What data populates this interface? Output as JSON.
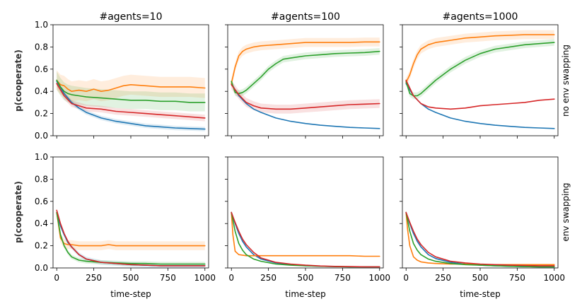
{
  "chart_data": {
    "type": "line",
    "layout": {
      "rows": 2,
      "cols": 3
    },
    "column_titles": [
      "#agents=10",
      "#agents=100",
      "#agents=1000"
    ],
    "row_labels": [
      "no env swapping",
      "env swapping"
    ],
    "xlabel": "time-step",
    "ylabel": "p(cooperate)",
    "xlim": [
      -25,
      1025
    ],
    "ylim": [
      0,
      1.0
    ],
    "xticks": [
      0,
      250,
      500,
      750,
      1000
    ],
    "xtick_labels": [
      "0",
      "250",
      "500",
      "750",
      "1000"
    ],
    "yticks": [
      0,
      0.2,
      0.4,
      0.6,
      0.8,
      1.0
    ],
    "ytick_labels": [
      "0.0",
      "0.2",
      "0.4",
      "0.6",
      "0.8",
      "1.0"
    ],
    "series_colors": {
      "blue": "#1f77b4",
      "orange": "#ff7f0e",
      "green": "#2ca02c",
      "red": "#d62728"
    },
    "panels": [
      {
        "row": 0,
        "col": 0,
        "series": [
          {
            "name": "blue",
            "x": [
              0,
              50,
              100,
              150,
              200,
              300,
              400,
              500,
              600,
              700,
              800,
              900,
              1000
            ],
            "y": [
              0.49,
              0.38,
              0.3,
              0.25,
              0.21,
              0.16,
              0.13,
              0.11,
              0.09,
              0.08,
              0.07,
              0.065,
              0.06
            ],
            "band": 0.02
          },
          {
            "name": "orange",
            "x": [
              0,
              25,
              50,
              75,
              100,
              150,
              200,
              250,
              300,
              350,
              400,
              450,
              500,
              600,
              700,
              800,
              900,
              1000
            ],
            "y": [
              0.5,
              0.46,
              0.45,
              0.42,
              0.4,
              0.41,
              0.4,
              0.42,
              0.4,
              0.41,
              0.43,
              0.45,
              0.46,
              0.45,
              0.44,
              0.44,
              0.44,
              0.43
            ],
            "band": 0.09
          },
          {
            "name": "green",
            "x": [
              0,
              25,
              50,
              75,
              100,
              150,
              200,
              300,
              400,
              500,
              600,
              700,
              800,
              900,
              1000
            ],
            "y": [
              0.5,
              0.44,
              0.4,
              0.38,
              0.37,
              0.36,
              0.35,
              0.34,
              0.33,
              0.32,
              0.32,
              0.31,
              0.31,
              0.3,
              0.3
            ],
            "band": 0.08
          },
          {
            "name": "red",
            "x": [
              0,
              50,
              100,
              150,
              200,
              300,
              400,
              500,
              600,
              700,
              800,
              900,
              1000
            ],
            "y": [
              0.47,
              0.36,
              0.29,
              0.27,
              0.25,
              0.24,
              0.22,
              0.21,
              0.2,
              0.19,
              0.18,
              0.17,
              0.16
            ],
            "band": 0.03
          }
        ]
      },
      {
        "row": 0,
        "col": 1,
        "series": [
          {
            "name": "blue",
            "x": [
              0,
              50,
              100,
              150,
              200,
              300,
              400,
              500,
              600,
              700,
              800,
              900,
              1000
            ],
            "y": [
              0.47,
              0.36,
              0.29,
              0.24,
              0.21,
              0.16,
              0.13,
              0.11,
              0.095,
              0.085,
              0.075,
              0.07,
              0.065
            ],
            "band": 0.0
          },
          {
            "name": "orange",
            "x": [
              0,
              25,
              50,
              75,
              100,
              150,
              200,
              300,
              400,
              500,
              600,
              700,
              800,
              900,
              1000
            ],
            "y": [
              0.47,
              0.62,
              0.72,
              0.76,
              0.78,
              0.8,
              0.81,
              0.82,
              0.83,
              0.84,
              0.84,
              0.84,
              0.84,
              0.845,
              0.845
            ],
            "band": 0.04
          },
          {
            "name": "green",
            "x": [
              0,
              25,
              50,
              75,
              100,
              150,
              200,
              250,
              300,
              350,
              400,
              500,
              600,
              700,
              800,
              900,
              1000
            ],
            "y": [
              0.49,
              0.39,
              0.38,
              0.39,
              0.41,
              0.47,
              0.53,
              0.6,
              0.65,
              0.69,
              0.7,
              0.72,
              0.73,
              0.74,
              0.745,
              0.75,
              0.76
            ],
            "band": 0.03
          },
          {
            "name": "red",
            "x": [
              0,
              50,
              100,
              150,
              200,
              300,
              400,
              500,
              600,
              700,
              800,
              900,
              1000
            ],
            "y": [
              0.46,
              0.37,
              0.3,
              0.27,
              0.25,
              0.24,
              0.24,
              0.25,
              0.26,
              0.27,
              0.28,
              0.285,
              0.29
            ],
            "band": 0.04
          }
        ]
      },
      {
        "row": 0,
        "col": 2,
        "series": [
          {
            "name": "blue",
            "x": [
              0,
              50,
              100,
              150,
              200,
              300,
              400,
              500,
              600,
              700,
              800,
              900,
              1000
            ],
            "y": [
              0.47,
              0.36,
              0.29,
              0.24,
              0.21,
              0.16,
              0.13,
              0.11,
              0.095,
              0.085,
              0.075,
              0.07,
              0.065
            ],
            "band": 0.0
          },
          {
            "name": "orange",
            "x": [
              0,
              25,
              50,
              75,
              100,
              150,
              200,
              300,
              400,
              500,
              600,
              700,
              800,
              900,
              1000
            ],
            "y": [
              0.48,
              0.55,
              0.65,
              0.73,
              0.78,
              0.82,
              0.84,
              0.86,
              0.88,
              0.89,
              0.9,
              0.905,
              0.91,
              0.91,
              0.91
            ],
            "band": 0.04
          },
          {
            "name": "green",
            "x": [
              0,
              25,
              50,
              75,
              100,
              150,
              200,
              300,
              400,
              500,
              600,
              700,
              800,
              900,
              1000
            ],
            "y": [
              0.49,
              0.38,
              0.36,
              0.36,
              0.38,
              0.44,
              0.5,
              0.6,
              0.68,
              0.74,
              0.78,
              0.8,
              0.82,
              0.83,
              0.84
            ],
            "band": 0.03
          },
          {
            "name": "red",
            "x": [
              0,
              50,
              100,
              150,
              200,
              300,
              400,
              500,
              600,
              700,
              800,
              900,
              1000
            ],
            "y": [
              0.5,
              0.36,
              0.29,
              0.26,
              0.25,
              0.24,
              0.25,
              0.27,
              0.28,
              0.29,
              0.3,
              0.32,
              0.33
            ],
            "band": 0.0
          }
        ]
      },
      {
        "row": 1,
        "col": 0,
        "series": [
          {
            "name": "blue",
            "x": [
              0,
              25,
              50,
              75,
              100,
              150,
              200,
              300,
              400,
              500,
              600,
              700,
              800,
              900,
              1000
            ],
            "y": [
              0.5,
              0.38,
              0.3,
              0.23,
              0.19,
              0.12,
              0.08,
              0.05,
              0.04,
              0.03,
              0.025,
              0.02,
              0.02,
              0.02,
              0.02
            ],
            "band": 0.02
          },
          {
            "name": "orange",
            "x": [
              0,
              25,
              50,
              75,
              100,
              150,
              200,
              300,
              350,
              400,
              500,
              600,
              700,
              800,
              900,
              1000
            ],
            "y": [
              0.5,
              0.27,
              0.22,
              0.21,
              0.21,
              0.2,
              0.2,
              0.2,
              0.21,
              0.2,
              0.2,
              0.2,
              0.2,
              0.2,
              0.2,
              0.2
            ],
            "band": 0.04
          },
          {
            "name": "green",
            "x": [
              0,
              25,
              50,
              75,
              100,
              150,
              200,
              300,
              400,
              500,
              600,
              700,
              800,
              900,
              1000
            ],
            "y": [
              0.5,
              0.3,
              0.2,
              0.14,
              0.1,
              0.07,
              0.06,
              0.05,
              0.045,
              0.04,
              0.04,
              0.035,
              0.035,
              0.035,
              0.035
            ],
            "band": 0.02
          },
          {
            "name": "red",
            "x": [
              0,
              25,
              50,
              75,
              100,
              150,
              200,
              300,
              400,
              500,
              600,
              700,
              800,
              900,
              1000
            ],
            "y": [
              0.52,
              0.4,
              0.31,
              0.24,
              0.19,
              0.12,
              0.08,
              0.05,
              0.04,
              0.03,
              0.025,
              0.02,
              0.02,
              0.02,
              0.02
            ],
            "band": 0.0
          }
        ]
      },
      {
        "row": 1,
        "col": 1,
        "series": [
          {
            "name": "blue",
            "x": [
              0,
              25,
              50,
              75,
              100,
              150,
              200,
              300,
              400,
              500,
              600,
              700,
              800,
              900,
              1000
            ],
            "y": [
              0.5,
              0.4,
              0.31,
              0.24,
              0.19,
              0.12,
              0.08,
              0.045,
              0.03,
              0.02,
              0.015,
              0.012,
              0.01,
              0.01,
              0.01
            ],
            "band": 0.0
          },
          {
            "name": "orange",
            "x": [
              0,
              10,
              25,
              50,
              75,
              100,
              150,
              200,
              300,
              400,
              500,
              600,
              700,
              800,
              900,
              1000
            ],
            "y": [
              0.5,
              0.3,
              0.15,
              0.12,
              0.115,
              0.11,
              0.11,
              0.11,
              0.11,
              0.11,
              0.11,
              0.11,
              0.11,
              0.11,
              0.105,
              0.105
            ],
            "band": 0.0
          },
          {
            "name": "green",
            "x": [
              0,
              25,
              50,
              75,
              100,
              150,
              200,
              300,
              400,
              500,
              600,
              700,
              800,
              900,
              1000
            ],
            "y": [
              0.5,
              0.33,
              0.22,
              0.16,
              0.12,
              0.08,
              0.06,
              0.035,
              0.025,
              0.02,
              0.015,
              0.012,
              0.01,
              0.01,
              0.01
            ],
            "band": 0.0
          },
          {
            "name": "red",
            "x": [
              0,
              25,
              50,
              75,
              100,
              150,
              200,
              300,
              400,
              500,
              600,
              700,
              800,
              900,
              1000
            ],
            "y": [
              0.5,
              0.41,
              0.33,
              0.26,
              0.21,
              0.14,
              0.09,
              0.05,
              0.035,
              0.025,
              0.018,
              0.014,
              0.012,
              0.01,
              0.01
            ],
            "band": 0.0
          }
        ]
      },
      {
        "row": 1,
        "col": 2,
        "series": [
          {
            "name": "blue",
            "x": [
              0,
              25,
              50,
              75,
              100,
              150,
              200,
              300,
              400,
              500,
              600,
              700,
              800,
              900,
              1000
            ],
            "y": [
              0.5,
              0.4,
              0.31,
              0.24,
              0.19,
              0.12,
              0.085,
              0.05,
              0.035,
              0.025,
              0.02,
              0.015,
              0.012,
              0.01,
              0.01
            ],
            "band": 0.0
          },
          {
            "name": "orange",
            "x": [
              0,
              10,
              25,
              50,
              75,
              100,
              150,
              200,
              300,
              400,
              500,
              600,
              700,
              800,
              900,
              1000
            ],
            "y": [
              0.5,
              0.35,
              0.2,
              0.1,
              0.07,
              0.055,
              0.045,
              0.04,
              0.035,
              0.035,
              0.03,
              0.03,
              0.03,
              0.03,
              0.03,
              0.03
            ],
            "band": 0.0
          },
          {
            "name": "green",
            "x": [
              0,
              25,
              50,
              75,
              100,
              150,
              200,
              300,
              400,
              500,
              600,
              700,
              800,
              900,
              1000
            ],
            "y": [
              0.5,
              0.33,
              0.22,
              0.16,
              0.12,
              0.08,
              0.06,
              0.04,
              0.03,
              0.025,
              0.02,
              0.015,
              0.012,
              0.01,
              0.01
            ],
            "band": 0.0
          },
          {
            "name": "red",
            "x": [
              0,
              25,
              50,
              75,
              100,
              150,
              200,
              300,
              400,
              500,
              600,
              700,
              800,
              900,
              1000
            ],
            "y": [
              0.5,
              0.41,
              0.33,
              0.26,
              0.21,
              0.14,
              0.1,
              0.06,
              0.045,
              0.035,
              0.03,
              0.025,
              0.022,
              0.02,
              0.02
            ],
            "band": 0.0
          }
        ]
      }
    ]
  }
}
